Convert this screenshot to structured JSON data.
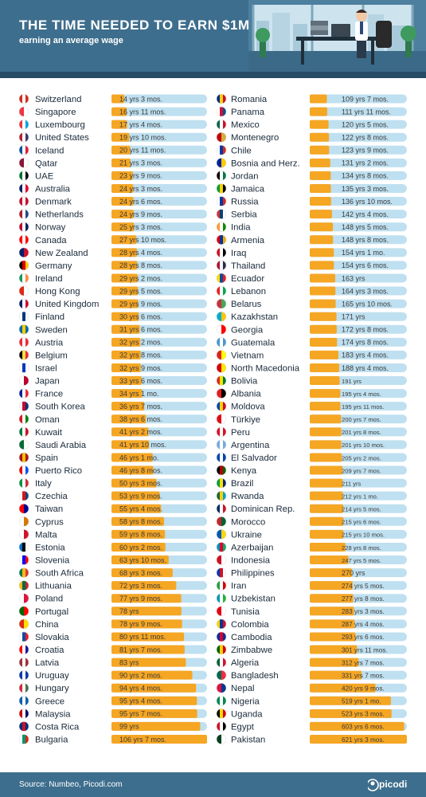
{
  "title": "THE TIME NEEDED TO EARN $1M",
  "subtitle": "earning an average wage",
  "source": "Source: Numbeo, Picodi.com",
  "brand": "picodi",
  "colors": {
    "header": "#3e6e8d",
    "bar": "#f5a623",
    "track": "#bfe0f0"
  },
  "chart_data": {
    "type": "bar",
    "orientation": "horizontal",
    "unit": "years",
    "xlim": [
      0,
      621.25
    ],
    "columns": [
      {
        "categories": [
          "Switzerland",
          "Singapore",
          "Luxembourg",
          "United States",
          "Iceland",
          "Qatar",
          "UAE",
          "Australia",
          "Denmark",
          "Netherlands",
          "Norway",
          "Canada",
          "New Zealand",
          "Germany",
          "Ireland",
          "Hong Kong",
          "United Kingdom",
          "Finland",
          "Sweden",
          "Austria",
          "Belgium",
          "Israel",
          "Japan",
          "France",
          "South Korea",
          "Oman",
          "Kuwait",
          "Saudi Arabia",
          "Spain",
          "Puerto Rico",
          "Italy",
          "Czechia",
          "Taiwan",
          "Cyprus",
          "Malta",
          "Estonia",
          "Slovenia",
          "South Africa",
          "Lithuania",
          "Poland",
          "Portugal",
          "China",
          "Slovakia",
          "Croatia",
          "Latvia",
          "Uruguay",
          "Hungary",
          "Greece",
          "Malaysia",
          "Costa Rica",
          "Bulgaria"
        ],
        "labels": [
          "14 yrs 3 mos.",
          "16 yrs 11 mos.",
          "17 yrs 4 mos.",
          "19 yrs 10 mos.",
          "20 yrs 11 mos.",
          "21 yrs 3 mos.",
          "23 yrs 9 mos.",
          "24 yrs 3 mos.",
          "24 yrs 6 mos.",
          "24 yrs 9 mos.",
          "25 yrs 3 mos.",
          "27 yrs 10 mos.",
          "28 yrs 4 mos.",
          "28 yrs 8 mos.",
          "29 yrs 2 mos.",
          "29 yrs 5 mos.",
          "29 yrs 9 mos.",
          "30 yrs 6 mos.",
          "31 yrs 6 mos.",
          "32 yrs 2 mos.",
          "32 yrs 8 mos.",
          "32 yrs 9 mos.",
          "33 yrs 6 mos.",
          "34 yrs 1 mo.",
          "36 yrs 7 mos.",
          "38 yrs 6 mos.",
          "41 yrs 2 mos.",
          "41 yrs 10 mos.",
          "46 yrs 1 mo.",
          "46 yrs 8 mos.",
          "50 yrs 3 mos.",
          "53 yrs 9 mos.",
          "55 yrs 4 mos.",
          "58 yrs 8 mos.",
          "59 yrs 8 mos.",
          "60 yrs 2 mos.",
          "63 yrs 10 mos.",
          "68 yrs 3 mos.",
          "72 yrs 3 mos.",
          "77 yrs 9 mos.",
          "78 yrs",
          "78 yrs 9 mos.",
          "80 yrs 11 mos.",
          "81 yrs 7 mos.",
          "83 yrs",
          "90 yrs 2 mos.",
          "94 yrs 4 mos.",
          "95 yrs 4 mos.",
          "95 yrs 7 mos.",
          "99 yrs",
          "106 yrs 7 mos."
        ],
        "values": [
          14.25,
          16.92,
          17.33,
          19.83,
          20.92,
          21.25,
          23.75,
          24.25,
          24.5,
          24.75,
          25.25,
          27.83,
          28.33,
          28.67,
          29.17,
          29.42,
          29.75,
          30.5,
          31.5,
          32.17,
          32.67,
          32.75,
          33.5,
          34.08,
          36.58,
          38.5,
          41.17,
          41.83,
          46.08,
          46.67,
          50.25,
          53.75,
          55.33,
          58.67,
          59.67,
          60.17,
          63.83,
          68.25,
          72.25,
          77.75,
          78.0,
          78.75,
          80.92,
          81.58,
          83.0,
          90.17,
          94.33,
          95.33,
          95.58,
          99.0,
          106.58
        ]
      },
      {
        "categories": [
          "Romania",
          "Panama",
          "Mexico",
          "Montenegro",
          "Chile",
          "Bosnia and Herz.",
          "Jordan",
          "Jamaica",
          "Russia",
          "Serbia",
          "India",
          "Armenia",
          "Iraq",
          "Thailand",
          "Ecuador",
          "Lebanon",
          "Belarus",
          "Kazakhstan",
          "Georgia",
          "Guatemala",
          "Vietnam",
          "North Macedonia",
          "Bolivia",
          "Albania",
          "Moldova",
          "Türkiye",
          "Peru",
          "Argentina",
          "El Salvador",
          "Kenya",
          "Brazil",
          "Rwanda",
          "Dominican Rep.",
          "Morocco",
          "Ukraine",
          "Azerbaijan",
          "Indonesia",
          "Philippines",
          "Iran",
          "Uzbekistan",
          "Tunisia",
          "Colombia",
          "Cambodia",
          "Zimbabwe",
          "Algeria",
          "Bangladesh",
          "Nepal",
          "Nigeria",
          "Uganda",
          "Egypt",
          "Pakistan"
        ],
        "labels": [
          "109 yrs 7 mos.",
          "111 yrs 11 mos.",
          "120 yrs 5 mos.",
          "122 yrs 8 mos.",
          "123 yrs 9 mos.",
          "131 yrs 2 mos.",
          "134 yrs 8 mos.",
          "135 yrs 3 mos.",
          "136 yrs 10 mos.",
          "142 yrs 4 mos.",
          "148 yrs 5 mos.",
          "148 yrs 8 mos.",
          "154 yrs 1 mo.",
          "154 yrs 6 mos.",
          "163 yrs",
          "164 yrs 3 mos.",
          "165 yrs 10 mos.",
          "171 yrs",
          "172 yrs 8 mos.",
          "174 yrs 8 mos.",
          "183 yrs 4 mos.",
          "188 yrs 4 mos.",
          "191 yrs",
          "195 yrs 4 mos.",
          "195 yrs 11 mos.",
          "200 yrs 7 mos.",
          "201 yrs 8 mos.",
          "201 yrs 10 mos.",
          "205 yrs 2 mos.",
          "209 yrs 7 mos.",
          "211 yrs",
          "212 yrs 1 mo.",
          "214 yrs 5 mos.",
          "215 yrs 6 mos.",
          "215 yrs 10 mos.",
          "228 yrs 8 mos.",
          "247 yrs 5 mos.",
          "270 yrs",
          "274 yrs 5 mos.",
          "277 yrs 8 mos.",
          "283 yrs 3 mos.",
          "287 yrs 4 mos.",
          "293 yrs 6 mos.",
          "301 yrs 11 mos.",
          "312 yrs 7 mos.",
          "331 yrs 7 mos.",
          "420 yrs 9 mos.",
          "519 yrs 1 mo.",
          "523 yrs 3 mos.",
          "603 yrs 6 mos.",
          "621 yrs 3 mos."
        ],
        "values": [
          109.58,
          111.92,
          120.42,
          122.67,
          123.75,
          131.17,
          134.67,
          135.25,
          136.83,
          142.33,
          148.42,
          148.67,
          154.08,
          154.5,
          163.0,
          164.25,
          165.83,
          171.0,
          172.67,
          174.67,
          183.33,
          188.33,
          191.0,
          195.33,
          195.92,
          200.58,
          201.67,
          201.83,
          205.17,
          209.58,
          211.0,
          212.08,
          214.42,
          215.5,
          215.83,
          228.67,
          247.42,
          270.0,
          274.42,
          277.67,
          283.25,
          287.33,
          293.5,
          301.92,
          312.58,
          331.58,
          420.75,
          519.08,
          523.25,
          603.5,
          621.25
        ]
      }
    ],
    "flags": {
      "Switzerland": [
        "#d52b1e",
        "#ffffff",
        "#d52b1e"
      ],
      "Singapore": [
        "#ef3340",
        "#ffffff"
      ],
      "Luxembourg": [
        "#ef3340",
        "#ffffff",
        "#00a3e0"
      ],
      "United States": [
        "#b22234",
        "#ffffff",
        "#3c3b6e"
      ],
      "Iceland": [
        "#02529c",
        "#ffffff",
        "#dc1e35"
      ],
      "Qatar": [
        "#8a1538",
        "#ffffff"
      ],
      "UAE": [
        "#00732f",
        "#ffffff",
        "#000000"
      ],
      "Australia": [
        "#012169",
        "#ffffff",
        "#e4002b"
      ],
      "Denmark": [
        "#c8102e",
        "#ffffff",
        "#c8102e"
      ],
      "Netherlands": [
        "#ae1c28",
        "#ffffff",
        "#21468b"
      ],
      "Norway": [
        "#ba0c2f",
        "#ffffff",
        "#00205b"
      ],
      "Canada": [
        "#ff0000",
        "#ffffff",
        "#ff0000"
      ],
      "New Zealand": [
        "#012169",
        "#c8102e"
      ],
      "Germany": [
        "#000000",
        "#dd0000",
        "#ffce00"
      ],
      "Ireland": [
        "#169b62",
        "#ffffff",
        "#ff883e"
      ],
      "Hong Kong": [
        "#de2910",
        "#ffffff"
      ],
      "United Kingdom": [
        "#012169",
        "#ffffff",
        "#c8102e"
      ],
      "Finland": [
        "#ffffff",
        "#003580",
        "#ffffff"
      ],
      "Sweden": [
        "#006aa7",
        "#fecc00",
        "#006aa7"
      ],
      "Austria": [
        "#ed2939",
        "#ffffff",
        "#ed2939"
      ],
      "Belgium": [
        "#000000",
        "#fae042",
        "#ed2939"
      ],
      "Israel": [
        "#ffffff",
        "#0038b8",
        "#ffffff"
      ],
      "Japan": [
        "#ffffff",
        "#bc002d"
      ],
      "France": [
        "#002395",
        "#ffffff",
        "#ed2939"
      ],
      "South Korea": [
        "#ffffff",
        "#c60c30",
        "#003478"
      ],
      "Oman": [
        "#db161b",
        "#ffffff",
        "#008000"
      ],
      "Kuwait": [
        "#007a3d",
        "#ffffff",
        "#ce1126"
      ],
      "Saudi Arabia": [
        "#006c35",
        "#ffffff"
      ],
      "Spain": [
        "#aa151b",
        "#f1bf00",
        "#aa151b"
      ],
      "Puerto Rico": [
        "#ed0000",
        "#ffffff",
        "#0050f0"
      ],
      "Italy": [
        "#009246",
        "#ffffff",
        "#ce2b37"
      ],
      "Czechia": [
        "#ffffff",
        "#d7141a",
        "#11457e"
      ],
      "Taiwan": [
        "#fe0000",
        "#000095"
      ],
      "Cyprus": [
        "#ffffff",
        "#d57800"
      ],
      "Malta": [
        "#ffffff",
        "#cf142b"
      ],
      "Estonia": [
        "#0072ce",
        "#000000",
        "#ffffff"
      ],
      "Slovenia": [
        "#ffffff",
        "#0000ff",
        "#ff0000"
      ],
      "South Africa": [
        "#007749",
        "#ffb81c",
        "#de3831"
      ],
      "Lithuania": [
        "#fdb913",
        "#006a44",
        "#c1272d"
      ],
      "Poland": [
        "#ffffff",
        "#dc143c"
      ],
      "Portugal": [
        "#006600",
        "#ff0000"
      ],
      "China": [
        "#de2910",
        "#ffde00"
      ],
      "Slovakia": [
        "#ffffff",
        "#0b4ea2",
        "#ee1c25"
      ],
      "Croatia": [
        "#ff0000",
        "#ffffff",
        "#171796"
      ],
      "Latvia": [
        "#9e3039",
        "#ffffff",
        "#9e3039"
      ],
      "Uruguay": [
        "#0038a8",
        "#ffffff",
        "#0038a8"
      ],
      "Hungary": [
        "#ce2939",
        "#ffffff",
        "#477050"
      ],
      "Greece": [
        "#0d5eaf",
        "#ffffff",
        "#0d5eaf"
      ],
      "Malaysia": [
        "#cc0001",
        "#ffffff",
        "#010066"
      ],
      "Costa Rica": [
        "#002b7f",
        "#ce1126",
        "#002b7f"
      ],
      "Bulgaria": [
        "#ffffff",
        "#00966e",
        "#d62612"
      ],
      "Romania": [
        "#002b7f",
        "#fcd116",
        "#ce1126"
      ],
      "Panama": [
        "#ffffff",
        "#d21034",
        "#005293"
      ],
      "Mexico": [
        "#006847",
        "#ffffff",
        "#ce1126"
      ],
      "Montenegro": [
        "#c40308",
        "#d3ae3b"
      ],
      "Chile": [
        "#ffffff",
        "#0039a6",
        "#d52b1e"
      ],
      "Bosnia and Herz.": [
        "#002395",
        "#fecb00"
      ],
      "Jordan": [
        "#000000",
        "#ffffff",
        "#007a3d"
      ],
      "Jamaica": [
        "#009b3a",
        "#fed100",
        "#000000"
      ],
      "Russia": [
        "#ffffff",
        "#0039a6",
        "#d52b1e"
      ],
      "Serbia": [
        "#c6363c",
        "#0c4076",
        "#ffffff"
      ],
      "India": [
        "#ff9933",
        "#ffffff",
        "#138808"
      ],
      "Armenia": [
        "#d90012",
        "#0033a0",
        "#f2a800"
      ],
      "Iraq": [
        "#ce1126",
        "#ffffff",
        "#000000"
      ],
      "Thailand": [
        "#a51931",
        "#f4f5f8",
        "#2d2a4a"
      ],
      "Ecuador": [
        "#ffdd00",
        "#034ea2",
        "#ed1c24"
      ],
      "Lebanon": [
        "#ed1c24",
        "#ffffff",
        "#00a650"
      ],
      "Belarus": [
        "#c8313e",
        "#4aa657"
      ],
      "Kazakhstan": [
        "#00afca",
        "#fec50c"
      ],
      "Georgia": [
        "#ffffff",
        "#ff0000"
      ],
      "Guatemala": [
        "#4997d0",
        "#ffffff",
        "#4997d0"
      ],
      "Vietnam": [
        "#da251d",
        "#ffff00"
      ],
      "North Macedonia": [
        "#d20000",
        "#ffe600"
      ],
      "Bolivia": [
        "#d52b1e",
        "#f9e300",
        "#007934"
      ],
      "Albania": [
        "#e41e20",
        "#000000"
      ],
      "Moldova": [
        "#0046ae",
        "#ffd200",
        "#cc092f"
      ],
      "Türkiye": [
        "#e30a17",
        "#ffffff"
      ],
      "Peru": [
        "#d91023",
        "#ffffff",
        "#d91023"
      ],
      "Argentina": [
        "#74acdf",
        "#ffffff",
        "#74acdf"
      ],
      "El Salvador": [
        "#0047ab",
        "#ffffff",
        "#0047ab"
      ],
      "Kenya": [
        "#000000",
        "#bb0000",
        "#006600"
      ],
      "Brazil": [
        "#009c3b",
        "#ffdf00",
        "#002776"
      ],
      "Rwanda": [
        "#20603d",
        "#fad201",
        "#00a1de"
      ],
      "Dominican Rep.": [
        "#002d62",
        "#ffffff",
        "#ce1126"
      ],
      "Morocco": [
        "#c1272d",
        "#006233"
      ],
      "Ukraine": [
        "#0057b7",
        "#ffd700"
      ],
      "Azerbaijan": [
        "#0092bc",
        "#e4002b",
        "#00af66"
      ],
      "Indonesia": [
        "#ce1126",
        "#ffffff"
      ],
      "Philippines": [
        "#0038a8",
        "#ce1126",
        "#ffffff"
      ],
      "Iran": [
        "#239f40",
        "#ffffff",
        "#da0000"
      ],
      "Uzbekistan": [
        "#0099b5",
        "#ffffff",
        "#1eb53a"
      ],
      "Tunisia": [
        "#e70013",
        "#ffffff"
      ],
      "Colombia": [
        "#fcd116",
        "#003893",
        "#ce1126"
      ],
      "Cambodia": [
        "#032ea1",
        "#e00025",
        "#032ea1"
      ],
      "Zimbabwe": [
        "#006400",
        "#ffd200",
        "#d40000"
      ],
      "Algeria": [
        "#006233",
        "#ffffff",
        "#d21034"
      ],
      "Bangladesh": [
        "#006a4e",
        "#f42a41"
      ],
      "Nepal": [
        "#dc143c",
        "#003893"
      ],
      "Nigeria": [
        "#008751",
        "#ffffff",
        "#008751"
      ],
      "Uganda": [
        "#000000",
        "#fcdc04",
        "#d90000"
      ],
      "Egypt": [
        "#ce1126",
        "#ffffff",
        "#000000"
      ],
      "Pakistan": [
        "#01411c",
        "#ffffff"
      ]
    }
  }
}
